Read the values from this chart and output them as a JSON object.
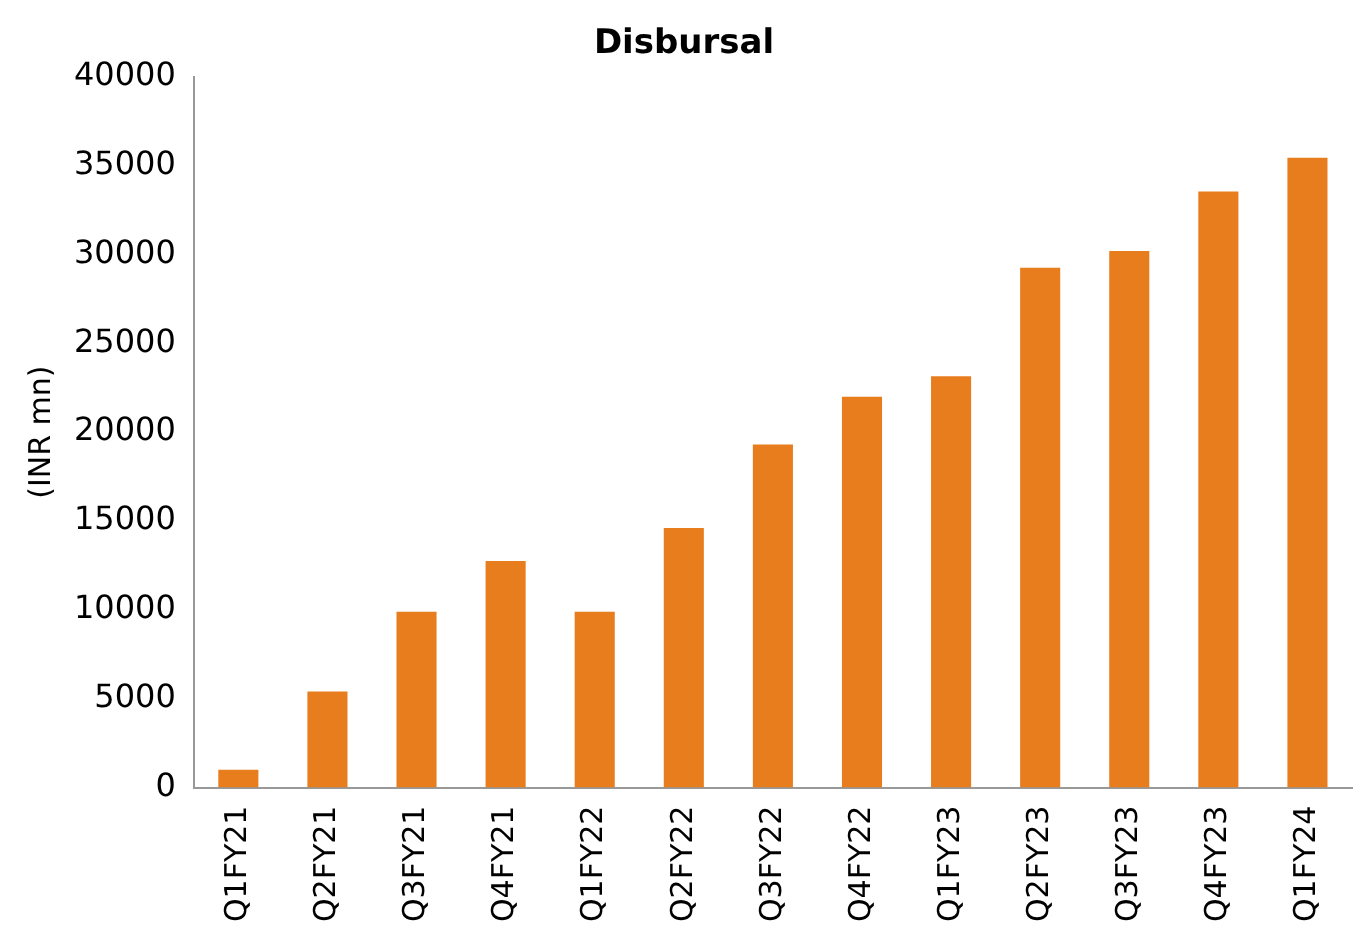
{
  "chart_data": {
    "type": "bar",
    "title": "Disbursal",
    "ylabel": "(INR mn)",
    "categories": [
      "Q1FY21",
      "Q2FY21",
      "Q3FY21",
      "Q4FY21",
      "Q1FY22",
      "Q2FY22",
      "Q3FY22",
      "Q4FY22",
      "Q1FY23",
      "Q2FY23",
      "Q3FY23",
      "Q4FY23",
      "Q1FY24"
    ],
    "values": [
      1000,
      5400,
      9900,
      12750,
      9900,
      14600,
      19300,
      22000,
      23150,
      29250,
      30200,
      33550,
      35450
    ],
    "color": "#e87d1e",
    "ylim": [
      0,
      40000
    ],
    "yticks": [
      0,
      5000,
      10000,
      15000,
      20000,
      25000,
      30000,
      35000,
      40000
    ],
    "grid": false,
    "legend": false
  }
}
